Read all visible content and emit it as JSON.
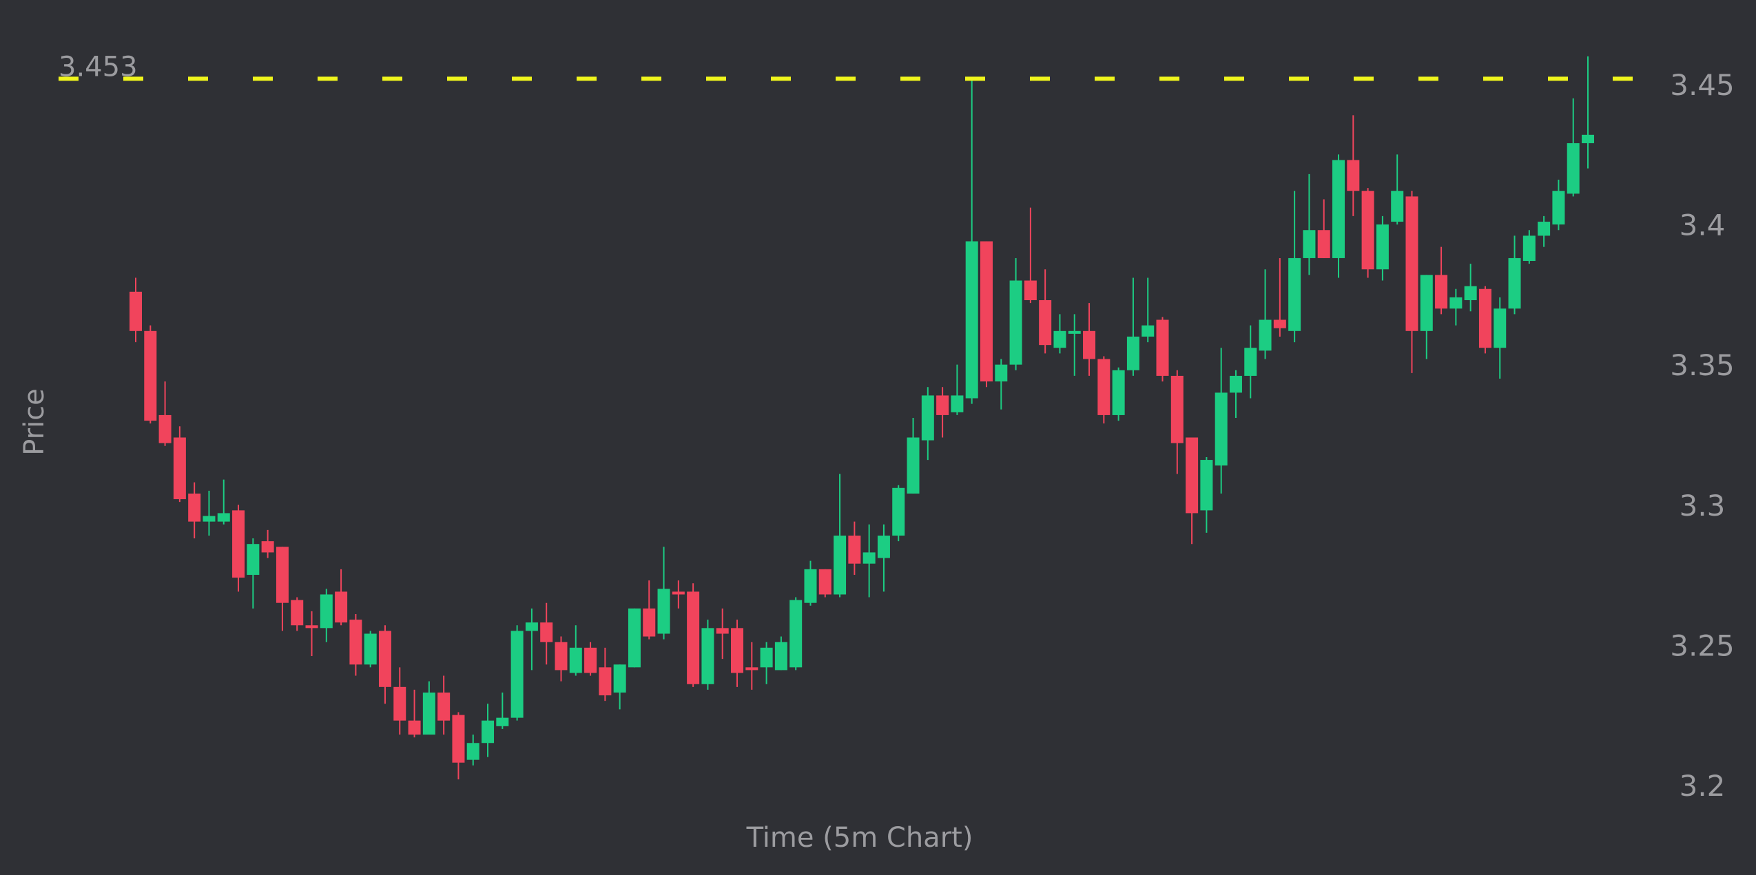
{
  "chart_data": {
    "type": "candlestick",
    "ylabel": "Price",
    "xlabel": "Time (5m Chart)",
    "up_color": "#1ccd83",
    "down_color": "#f1445c",
    "hline": 3.453,
    "hline_color": "#f0f51c",
    "ylim": [
      3.1689,
      3.4811
    ],
    "yticks": [
      3.2,
      3.25,
      3.3,
      3.35,
      3.4,
      3.45
    ],
    "open": [
      3.377,
      3.363,
      3.333,
      3.325,
      3.305,
      3.295,
      3.295,
      3.299,
      3.276,
      3.288,
      3.286,
      3.267,
      3.258,
      3.257,
      3.27,
      3.26,
      3.244,
      3.256,
      3.236,
      3.224,
      3.219,
      3.234,
      3.226,
      3.21,
      3.216,
      3.222,
      3.225,
      3.256,
      3.259,
      3.252,
      3.241,
      3.25,
      3.243,
      3.234,
      3.243,
      3.264,
      3.255,
      3.27,
      3.27,
      3.237,
      3.257,
      3.257,
      3.243,
      3.243,
      3.242,
      3.243,
      3.266,
      3.278,
      3.269,
      3.29,
      3.28,
      3.282,
      3.29,
      3.305,
      3.324,
      3.34,
      3.334,
      3.339,
      3.395,
      3.345,
      3.351,
      3.381,
      3.374,
      3.357,
      3.362,
      3.363,
      3.353,
      3.333,
      3.349,
      3.361,
      3.367,
      3.347,
      3.325,
      3.299,
      3.315,
      3.341,
      3.347,
      3.356,
      3.367,
      3.363,
      3.389,
      3.399,
      3.389,
      3.424,
      3.413,
      3.385,
      3.402,
      3.411,
      3.363,
      3.383,
      3.371,
      3.374,
      3.378,
      3.357,
      3.371,
      3.388,
      3.397,
      3.401,
      3.412,
      3.43
    ],
    "high": [
      3.382,
      3.365,
      3.345,
      3.329,
      3.309,
      3.306,
      3.31,
      3.301,
      3.289,
      3.292,
      3.286,
      3.268,
      3.263,
      3.271,
      3.278,
      3.262,
      3.256,
      3.258,
      3.243,
      3.235,
      3.238,
      3.24,
      3.227,
      3.219,
      3.23,
      3.234,
      3.258,
      3.264,
      3.266,
      3.254,
      3.258,
      3.252,
      3.25,
      3.244,
      3.264,
      3.274,
      3.286,
      3.274,
      3.273,
      3.26,
      3.264,
      3.26,
      3.252,
      3.252,
      3.254,
      3.268,
      3.281,
      3.278,
      3.312,
      3.295,
      3.294,
      3.294,
      3.308,
      3.332,
      3.343,
      3.343,
      3.351,
      3.453,
      3.395,
      3.353,
      3.389,
      3.407,
      3.385,
      3.369,
      3.369,
      3.373,
      3.354,
      3.35,
      3.382,
      3.382,
      3.368,
      3.349,
      3.325,
      3.318,
      3.357,
      3.349,
      3.365,
      3.385,
      3.389,
      3.413,
      3.419,
      3.41,
      3.426,
      3.44,
      3.414,
      3.404,
      3.426,
      3.413,
      3.383,
      3.393,
      3.378,
      3.387,
      3.379,
      3.375,
      3.397,
      3.399,
      3.404,
      3.417,
      3.446,
      3.461
    ],
    "low": [
      3.359,
      3.33,
      3.322,
      3.302,
      3.289,
      3.29,
      3.294,
      3.27,
      3.264,
      3.282,
      3.256,
      3.256,
      3.247,
      3.252,
      3.258,
      3.24,
      3.243,
      3.23,
      3.219,
      3.218,
      3.219,
      3.219,
      3.203,
      3.208,
      3.211,
      3.221,
      3.224,
      3.242,
      3.244,
      3.238,
      3.24,
      3.24,
      3.231,
      3.228,
      3.243,
      3.253,
      3.253,
      3.264,
      3.236,
      3.235,
      3.246,
      3.236,
      3.235,
      3.237,
      3.242,
      3.242,
      3.265,
      3.268,
      3.268,
      3.276,
      3.268,
      3.27,
      3.288,
      3.305,
      3.317,
      3.325,
      3.333,
      3.337,
      3.343,
      3.335,
      3.349,
      3.373,
      3.355,
      3.355,
      3.347,
      3.347,
      3.33,
      3.331,
      3.347,
      3.359,
      3.345,
      3.312,
      3.287,
      3.291,
      3.305,
      3.332,
      3.339,
      3.353,
      3.361,
      3.359,
      3.383,
      3.389,
      3.382,
      3.404,
      3.382,
      3.381,
      3.401,
      3.348,
      3.353,
      3.369,
      3.365,
      3.37,
      3.355,
      3.346,
      3.369,
      3.387,
      3.393,
      3.399,
      3.411,
      3.421
    ],
    "close": [
      3.363,
      3.331,
      3.323,
      3.303,
      3.295,
      3.297,
      3.298,
      3.275,
      3.287,
      3.284,
      3.266,
      3.258,
      3.257,
      3.269,
      3.259,
      3.244,
      3.255,
      3.236,
      3.224,
      3.219,
      3.234,
      3.224,
      3.209,
      3.216,
      3.224,
      3.225,
      3.256,
      3.259,
      3.252,
      3.242,
      3.25,
      3.241,
      3.233,
      3.244,
      3.264,
      3.254,
      3.271,
      3.269,
      3.237,
      3.257,
      3.255,
      3.241,
      3.242,
      3.25,
      3.252,
      3.267,
      3.278,
      3.269,
      3.29,
      3.28,
      3.284,
      3.29,
      3.307,
      3.325,
      3.34,
      3.333,
      3.34,
      3.395,
      3.345,
      3.351,
      3.381,
      3.374,
      3.358,
      3.363,
      3.363,
      3.353,
      3.333,
      3.349,
      3.361,
      3.365,
      3.347,
      3.323,
      3.298,
      3.317,
      3.341,
      3.347,
      3.357,
      3.367,
      3.364,
      3.389,
      3.399,
      3.389,
      3.424,
      3.413,
      3.385,
      3.401,
      3.413,
      3.363,
      3.383,
      3.371,
      3.375,
      3.379,
      3.357,
      3.371,
      3.389,
      3.397,
      3.402,
      3.413,
      3.43,
      3.433
    ]
  }
}
